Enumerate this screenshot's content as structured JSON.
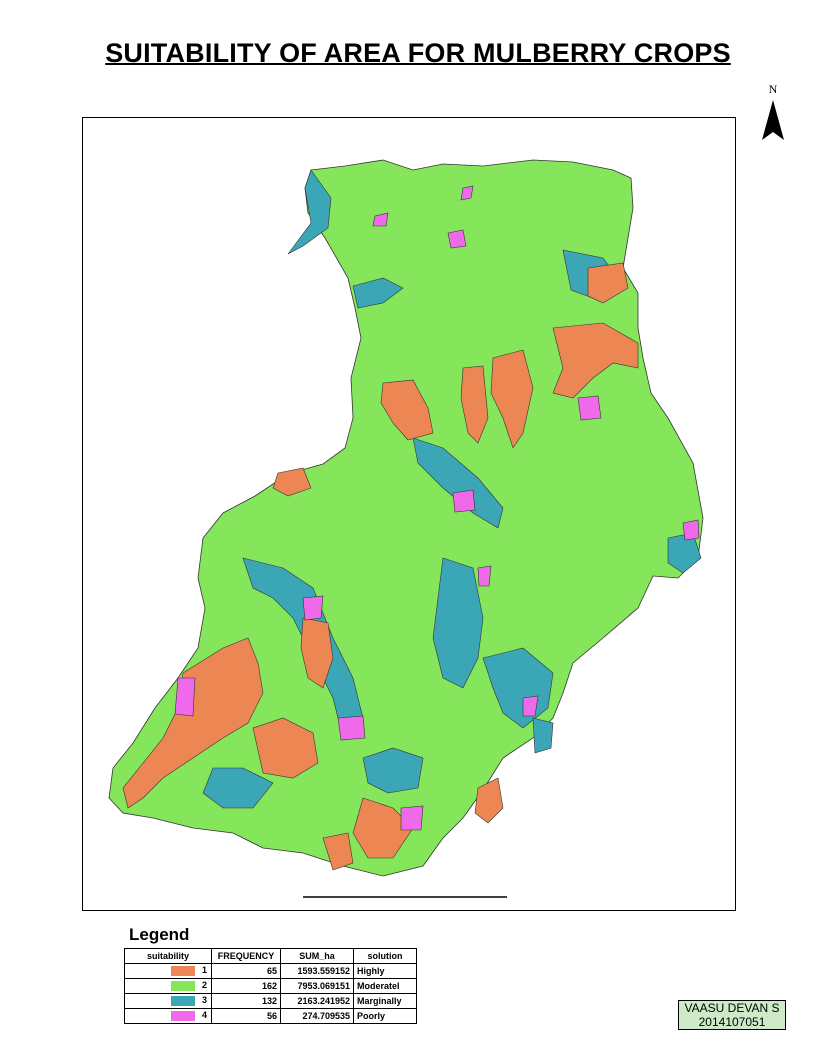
{
  "title": "SUITABILITY OF AREA FOR MULBERRY CROPS",
  "north_label": "N",
  "icons": {
    "north_arrow": "north-arrow-icon",
    "scale_bar": "scale-bar-icon"
  },
  "colors": {
    "highly": "#ec8754",
    "moderately": "#86e65b",
    "marginally": "#3ba6b6",
    "poorly": "#ef6ae8",
    "credit_bg": "#cfeac7"
  },
  "legend": {
    "title": "Legend",
    "headers": [
      "suitability",
      "FREQUENCY",
      "SUM_ha",
      "solution"
    ],
    "rows": [
      {
        "suitability": "1",
        "frequency": "65",
        "sum_ha": "1593.559152",
        "solution": "Highly"
      },
      {
        "suitability": "2",
        "frequency": "162",
        "sum_ha": "7953.069151",
        "solution": "Moderatel"
      },
      {
        "suitability": "3",
        "frequency": "132",
        "sum_ha": "2163.241952",
        "solution": "Marginally"
      },
      {
        "suitability": "4",
        "frequency": "56",
        "sum_ha": "274.709535",
        "solution": "Poorly"
      }
    ]
  },
  "credit": {
    "name": "VAASU DEVAN S",
    "id": "2014107051"
  }
}
